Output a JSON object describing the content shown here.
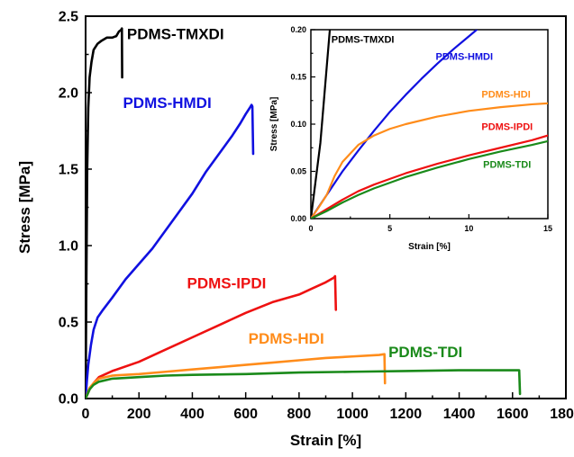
{
  "chart_data": [
    {
      "id": "main",
      "type": "line",
      "xlabel": "Strain [%]",
      "ylabel": "Stress [MPa]",
      "xlim": [
        0,
        1800
      ],
      "ylim": [
        0,
        2.5
      ],
      "xticks": [
        "0",
        "200",
        "400",
        "600",
        "800",
        "1000",
        "1200",
        "1400",
        "1600",
        "1800"
      ],
      "xtick_values": [
        0,
        200,
        400,
        600,
        800,
        1000,
        1200,
        1400,
        1600,
        1800
      ],
      "yticks": [
        "0.0",
        "0.5",
        "1.0",
        "1.5",
        "2.0",
        "2.5"
      ],
      "ytick_values": [
        0,
        0.5,
        1.0,
        1.5,
        2.0,
        2.5
      ],
      "grid": false,
      "series": [
        {
          "name": "PDMS-TMXDI",
          "color": "#000000",
          "points": [
            [
              0,
              0
            ],
            [
              3,
              0.8
            ],
            [
              6,
              1.5
            ],
            [
              10,
              1.9
            ],
            [
              15,
              2.1
            ],
            [
              22,
              2.2
            ],
            [
              30,
              2.28
            ],
            [
              45,
              2.32
            ],
            [
              60,
              2.34
            ],
            [
              80,
              2.36
            ],
            [
              100,
              2.36
            ],
            [
              115,
              2.37
            ],
            [
              125,
              2.4
            ],
            [
              133,
              2.41
            ],
            [
              136,
              2.42
            ],
            [
              137,
              2.1
            ]
          ]
        },
        {
          "name": "PDMS-HMDI",
          "color": "#1010e0",
          "points": [
            [
              0,
              0
            ],
            [
              5,
              0.12
            ],
            [
              10,
              0.22
            ],
            [
              20,
              0.35
            ],
            [
              30,
              0.45
            ],
            [
              45,
              0.53
            ],
            [
              65,
              0.58
            ],
            [
              100,
              0.66
            ],
            [
              150,
              0.78
            ],
            [
              200,
              0.88
            ],
            [
              250,
              0.98
            ],
            [
              300,
              1.1
            ],
            [
              350,
              1.22
            ],
            [
              400,
              1.34
            ],
            [
              450,
              1.48
            ],
            [
              500,
              1.6
            ],
            [
              550,
              1.72
            ],
            [
              580,
              1.8
            ],
            [
              600,
              1.86
            ],
            [
              615,
              1.9
            ],
            [
              622,
              1.92
            ],
            [
              625,
              1.91
            ],
            [
              628,
              1.6
            ]
          ]
        },
        {
          "name": "PDMS-IPDI",
          "color": "#ee1111",
          "points": [
            [
              0,
              0
            ],
            [
              15,
              0.06
            ],
            [
              30,
              0.1
            ],
            [
              50,
              0.14
            ],
            [
              100,
              0.18
            ],
            [
              200,
              0.24
            ],
            [
              300,
              0.32
            ],
            [
              400,
              0.4
            ],
            [
              500,
              0.48
            ],
            [
              600,
              0.56
            ],
            [
              700,
              0.63
            ],
            [
              800,
              0.68
            ],
            [
              850,
              0.72
            ],
            [
              900,
              0.76
            ],
            [
              930,
              0.79
            ],
            [
              935,
              0.8
            ],
            [
              938,
              0.58
            ]
          ]
        },
        {
          "name": "PDMS-HDI",
          "color": "#ff8c1a",
          "points": [
            [
              0,
              0
            ],
            [
              15,
              0.07
            ],
            [
              30,
              0.1
            ],
            [
              50,
              0.13
            ],
            [
              100,
              0.15
            ],
            [
              200,
              0.16
            ],
            [
              300,
              0.175
            ],
            [
              400,
              0.19
            ],
            [
              500,
              0.205
            ],
            [
              600,
              0.22
            ],
            [
              700,
              0.235
            ],
            [
              800,
              0.25
            ],
            [
              900,
              0.265
            ],
            [
              1000,
              0.275
            ],
            [
              1100,
              0.285
            ],
            [
              1120,
              0.29
            ],
            [
              1122,
              0.1
            ]
          ]
        },
        {
          "name": "PDMS-TDI",
          "color": "#1a8a1a",
          "points": [
            [
              0,
              0
            ],
            [
              15,
              0.06
            ],
            [
              30,
              0.09
            ],
            [
              50,
              0.11
            ],
            [
              100,
              0.13
            ],
            [
              200,
              0.14
            ],
            [
              300,
              0.15
            ],
            [
              400,
              0.155
            ],
            [
              600,
              0.16
            ],
            [
              800,
              0.17
            ],
            [
              1000,
              0.175
            ],
            [
              1200,
              0.18
            ],
            [
              1400,
              0.185
            ],
            [
              1600,
              0.185
            ],
            [
              1625,
              0.185
            ],
            [
              1628,
              0.03
            ]
          ]
        }
      ],
      "annotations": [
        {
          "text": "PDMS-TMXDI",
          "color": "#000000",
          "x": 155,
          "y": 2.35
        },
        {
          "text": "PDMS-HMDI",
          "color": "#1010e0",
          "x": 140,
          "y": 1.9
        },
        {
          "text": "PDMS-IPDI",
          "color": "#ee1111",
          "x": 380,
          "y": 0.72
        },
        {
          "text": "PDMS-HDI",
          "color": "#ff8c1a",
          "x": 610,
          "y": 0.36
        },
        {
          "text": "PDMS-TDI",
          "color": "#1a8a1a",
          "x": 1135,
          "y": 0.27
        }
      ]
    },
    {
      "id": "inset",
      "type": "line",
      "xlabel": "Strain [%]",
      "ylabel": "Stress [MPa]",
      "xlim": [
        0,
        15
      ],
      "ylim": [
        0,
        0.2
      ],
      "xticks": [
        "0",
        "5",
        "10",
        "15"
      ],
      "xtick_values": [
        0,
        5,
        10,
        15
      ],
      "yticks": [
        "0.00",
        "0.05",
        "0.10",
        "0.15",
        "0.20"
      ],
      "ytick_values": [
        0,
        0.05,
        0.1,
        0.15,
        0.2
      ],
      "grid": false,
      "series": [
        {
          "name": "PDMS-TMXDI",
          "color": "#000000",
          "points": [
            [
              0,
              0
            ],
            [
              0.3,
              0.04
            ],
            [
              0.6,
              0.08
            ],
            [
              0.8,
              0.12
            ],
            [
              1.0,
              0.16
            ],
            [
              1.2,
              0.2
            ]
          ]
        },
        {
          "name": "PDMS-HMDI",
          "color": "#1010e0",
          "points": [
            [
              0,
              0
            ],
            [
              1,
              0.025
            ],
            [
              2,
              0.05
            ],
            [
              3,
              0.072
            ],
            [
              4,
              0.093
            ],
            [
              5,
              0.113
            ],
            [
              6,
              0.131
            ],
            [
              7,
              0.148
            ],
            [
              8,
              0.164
            ],
            [
              9,
              0.179
            ],
            [
              10,
              0.193
            ],
            [
              10.5,
              0.2
            ]
          ]
        },
        {
          "name": "PDMS-HDI",
          "color": "#ff8c1a",
          "points": [
            [
              0,
              0
            ],
            [
              0.5,
              0.012
            ],
            [
              1,
              0.025
            ],
            [
              1.5,
              0.045
            ],
            [
              2,
              0.06
            ],
            [
              3,
              0.078
            ],
            [
              4,
              0.088
            ],
            [
              5,
              0.095
            ],
            [
              6,
              0.1
            ],
            [
              8,
              0.108
            ],
            [
              10,
              0.114
            ],
            [
              12,
              0.118
            ],
            [
              14,
              0.121
            ],
            [
              15,
              0.122
            ]
          ]
        },
        {
          "name": "PDMS-IPDI",
          "color": "#ee1111",
          "points": [
            [
              0,
              0
            ],
            [
              1,
              0.01
            ],
            [
              2,
              0.02
            ],
            [
              3,
              0.029
            ],
            [
              4,
              0.036
            ],
            [
              5,
              0.042
            ],
            [
              6,
              0.048
            ],
            [
              8,
              0.058
            ],
            [
              10,
              0.067
            ],
            [
              12,
              0.075
            ],
            [
              14,
              0.083
            ],
            [
              15,
              0.088
            ]
          ]
        },
        {
          "name": "PDMS-TDI",
          "color": "#1a8a1a",
          "points": [
            [
              0,
              0
            ],
            [
              1,
              0.008
            ],
            [
              2,
              0.017
            ],
            [
              3,
              0.025
            ],
            [
              4,
              0.032
            ],
            [
              5,
              0.038
            ],
            [
              6,
              0.044
            ],
            [
              8,
              0.054
            ],
            [
              10,
              0.063
            ],
            [
              12,
              0.071
            ],
            [
              14,
              0.078
            ],
            [
              15,
              0.082
            ]
          ]
        }
      ],
      "annotations": [
        {
          "text": "PDMS-TMXDI",
          "color": "#000000",
          "x": 1.3,
          "y": 0.186
        },
        {
          "text": "PDMS-HMDI",
          "color": "#1010e0",
          "x": 7.9,
          "y": 0.168
        },
        {
          "text": "PDMS-HDI",
          "color": "#ff8c1a",
          "x": 10.8,
          "y": 0.128
        },
        {
          "text": "PDMS-IPDI",
          "color": "#ee1111",
          "x": 10.8,
          "y": 0.094
        },
        {
          "text": "PDMS-TDI",
          "color": "#1a8a1a",
          "x": 10.9,
          "y": 0.054
        }
      ]
    }
  ]
}
